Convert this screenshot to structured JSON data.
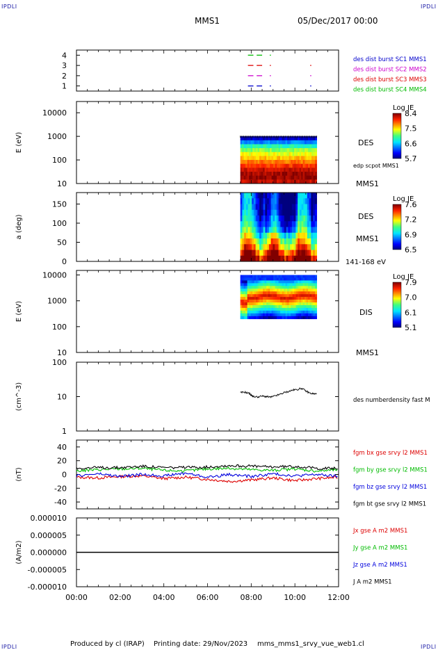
{
  "header": {
    "corner_logo": "IPDLI",
    "spacecraft": "MMS1",
    "date": "05/Dec/2017 00:00"
  },
  "footer": {
    "produced": "Produced by cl (IRAP)",
    "printing": "Printing date: 29/Nov/2023",
    "file": "mms_mms1_srvy_vue_web1.cl"
  },
  "time_axis": {
    "ticks": [
      "00:00",
      "02:00",
      "04:00",
      "06:00",
      "08:00",
      "10:00",
      "12:00"
    ],
    "range_hours": [
      0,
      12
    ]
  },
  "chart_data": [
    {
      "type": "scatter",
      "panel": "availability",
      "yticks": [
        "4",
        "3",
        "2",
        "1"
      ],
      "ylim": [
        0.5,
        4.5
      ],
      "legend": [
        {
          "label": "des dist burst SC1 MMS1",
          "color": "#0000cc"
        },
        {
          "label": "des dist burst SC2 MMS2",
          "color": "#cc00cc"
        },
        {
          "label": "des dist burst SC3 MMS3",
          "color": "#dd0000"
        },
        {
          "label": "des dist burst SC4 MMS4",
          "color": "#00bb00"
        }
      ],
      "series": [
        {
          "sc": 4,
          "color": "#00bb00",
          "segments": [
            [
              7.85,
              8.1
            ],
            [
              8.25,
              8.5
            ],
            [
              8.85,
              8.9
            ]
          ]
        },
        {
          "sc": 3,
          "color": "#dd0000",
          "segments": [
            [
              7.85,
              8.1
            ],
            [
              8.25,
              8.5
            ],
            [
              8.85,
              8.9
            ],
            [
              10.7,
              10.75
            ]
          ]
        },
        {
          "sc": 2,
          "color": "#cc00cc",
          "segments": [
            [
              7.85,
              8.1
            ],
            [
              8.25,
              8.5
            ],
            [
              8.85,
              8.9
            ],
            [
              10.7,
              10.75
            ]
          ]
        },
        {
          "sc": 1,
          "color": "#0000cc",
          "segments": [
            [
              7.85,
              8.1
            ],
            [
              8.25,
              8.5
            ],
            [
              8.85,
              8.9
            ],
            [
              10.7,
              10.75
            ]
          ]
        }
      ]
    },
    {
      "type": "heatmap",
      "panel": "des-energy",
      "ylabel": "E (eV)",
      "yscale": "log",
      "ylim": [
        10,
        30000
      ],
      "yticks": [
        "10000",
        "1000",
        "100",
        "10"
      ],
      "side_label": "DES",
      "side_note": "edp scpot MMS1",
      "sc_label": "MMS1",
      "colorbar": {
        "title": "Log JE",
        "ticks": [
          "8.4",
          "7.5",
          "6.6",
          "5.7"
        ],
        "range": [
          5.7,
          8.4
        ]
      },
      "data_window_hours": [
        7.5,
        11.0
      ],
      "energy_window_ev": [
        10,
        1000
      ],
      "rows_energy_ev": [
        1000,
        700,
        450,
        300,
        200,
        130,
        90,
        60,
        40,
        25,
        15,
        10
      ],
      "rows_logje": [
        5.9,
        6.4,
        6.9,
        7.2,
        7.4,
        7.6,
        7.8,
        8.0,
        8.2,
        8.3,
        8.35,
        8.2
      ]
    },
    {
      "type": "heatmap",
      "panel": "des-pitch",
      "ylabel": "a (deg)",
      "ylim": [
        0,
        180
      ],
      "yticks": [
        "150",
        "100",
        "50",
        "0"
      ],
      "side_label": "DES",
      "sc_label": "MMS1",
      "energy_note": "141-168 eV",
      "colorbar": {
        "title": "Log JE",
        "ticks": [
          "7.6",
          "7.2",
          "6.9",
          "6.5"
        ],
        "range": [
          6.5,
          7.6
        ]
      },
      "data_window_hours": [
        7.5,
        11.0
      ]
    },
    {
      "type": "heatmap",
      "panel": "dis-energy",
      "ylabel": "E (eV)",
      "yscale": "log",
      "ylim": [
        10,
        15000
      ],
      "yticks": [
        "10000",
        "1000",
        "100",
        "10"
      ],
      "side_label": "DIS",
      "sc_label": "MMS1",
      "colorbar": {
        "title": "Log JE",
        "ticks": [
          "7.9",
          "7.0",
          "6.1",
          "5.1"
        ],
        "range": [
          5.1,
          7.9
        ]
      },
      "data_window_hours": [
        7.5,
        11.0
      ],
      "energy_window_ev": [
        200,
        10000
      ]
    },
    {
      "type": "line",
      "panel": "density",
      "ylabel": "(cm^-3)",
      "yscale": "log",
      "ylim": [
        1,
        100
      ],
      "yticks": [
        "100",
        "10",
        "1"
      ],
      "legend": [
        {
          "label": "des numberdensity fast M",
          "color": "#000000"
        }
      ],
      "x": [
        7.5,
        7.7,
        7.9,
        8.0,
        8.1,
        8.3,
        8.5,
        8.7,
        8.9,
        9.1,
        9.3,
        9.5,
        9.7,
        9.9,
        10.1,
        10.3,
        10.5,
        10.7,
        10.9,
        11.0
      ],
      "values": [
        13,
        13.5,
        12.5,
        11,
        10,
        9.8,
        10.3,
        10,
        9.6,
        10.5,
        11.5,
        13,
        14,
        15.5,
        16,
        17.5,
        14.5,
        12.5,
        12,
        12
      ]
    },
    {
      "type": "line",
      "panel": "fgm",
      "ylabel": "(nT)",
      "ylim": [
        -50,
        50
      ],
      "yticks": [
        "40",
        "20",
        "0",
        "-20",
        "-40"
      ],
      "legend": [
        {
          "label": "fgm bx gse srvy l2 MMS1",
          "color": "#dd0000"
        },
        {
          "label": "fgm by gse srvy l2 MMS1",
          "color": "#00bb00"
        },
        {
          "label": "fgm bz gse srvy l2 MMS1",
          "color": "#0000dd"
        },
        {
          "label": "fgm bt gse srvy l2 MMS1",
          "color": "#000000"
        }
      ],
      "series": [
        {
          "name": "bx",
          "color": "#dd0000",
          "x": [
            0,
            1,
            2,
            3,
            4,
            5,
            6,
            7,
            8,
            9,
            10,
            11,
            12
          ],
          "values": [
            -4,
            -5,
            -3,
            -2,
            -6,
            -4,
            -7,
            -10,
            -8,
            -5,
            -9,
            -6,
            -4
          ]
        },
        {
          "name": "by",
          "color": "#00bb00",
          "x": [
            0,
            1,
            2,
            3,
            4,
            5,
            6,
            7,
            8,
            9,
            10,
            11,
            12
          ],
          "values": [
            5,
            7,
            8,
            9,
            6,
            5,
            8,
            9,
            7,
            6,
            8,
            5,
            7
          ]
        },
        {
          "name": "bz",
          "color": "#0000dd",
          "x": [
            0,
            1,
            2,
            3,
            4,
            5,
            6,
            7,
            8,
            9,
            10,
            11,
            12
          ],
          "values": [
            -2,
            1,
            -3,
            0,
            -2,
            2,
            -4,
            0,
            -3,
            1,
            -2,
            0,
            -3
          ]
        },
        {
          "name": "bt",
          "color": "#000000",
          "x": [
            0,
            1,
            2,
            3,
            4,
            5,
            6,
            7,
            8,
            9,
            10,
            11,
            12
          ],
          "values": [
            9,
            10,
            10,
            12,
            10,
            10,
            11,
            13,
            12,
            11,
            12,
            9,
            9
          ]
        }
      ]
    },
    {
      "type": "line",
      "panel": "current",
      "ylabel": "(A/m2)",
      "ylim": [
        -1e-05,
        1e-05
      ],
      "yticks": [
        "0.000010",
        "0.000005",
        "0.000000",
        "-0.000005",
        "-0.000010"
      ],
      "legend": [
        {
          "label": "Jx gse A m2 MMS1",
          "color": "#dd0000"
        },
        {
          "label": "Jy gse A m2 MMS1",
          "color": "#00bb00"
        },
        {
          "label": "Jz gse A m2 MMS1",
          "color": "#0000dd"
        },
        {
          "label": "J A m2 MMS1",
          "color": "#000000"
        }
      ],
      "x": [
        0,
        12
      ],
      "values": [
        0,
        0
      ]
    }
  ]
}
